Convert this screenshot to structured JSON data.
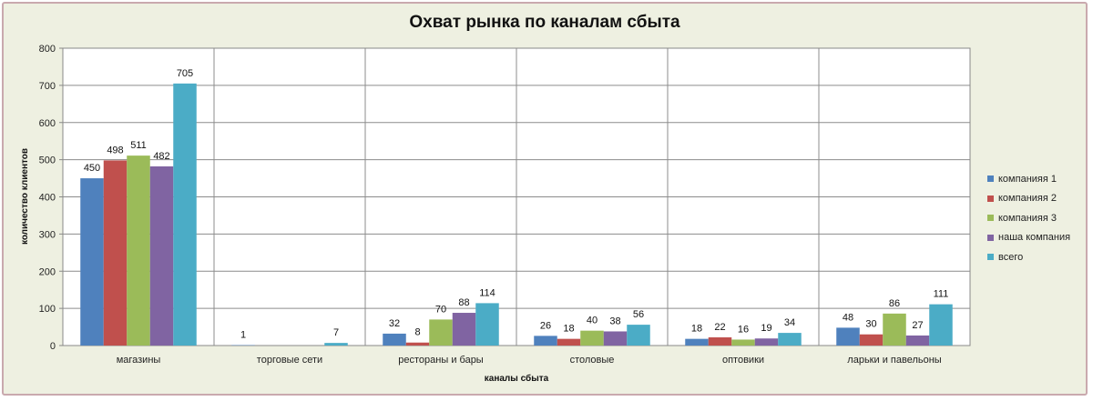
{
  "chart_data": {
    "type": "bar",
    "title": "Охват рынка по каналам сбыта",
    "xlabel": "каналы сбыта",
    "ylabel": "количество клиентов",
    "ylim": [
      0,
      800
    ],
    "yticks": [
      0,
      100,
      200,
      300,
      400,
      500,
      600,
      700,
      800
    ],
    "categories": [
      "магазины",
      "торговые сети",
      "рестораны и бары",
      "столовые",
      "оптовики",
      "ларьки и павельоны"
    ],
    "series": [
      {
        "name": "компанияя 1",
        "color": "#4f81bd",
        "values": [
          450,
          1,
          32,
          26,
          18,
          48
        ]
      },
      {
        "name": "компанияя 2",
        "color": "#c0504d",
        "values": [
          498,
          0,
          8,
          18,
          22,
          30
        ]
      },
      {
        "name": "компанияя 3",
        "color": "#9bbb59",
        "values": [
          511,
          0,
          70,
          40,
          16,
          86
        ]
      },
      {
        "name": "наша компания",
        "color": "#8064a2",
        "values": [
          482,
          0,
          88,
          38,
          19,
          27
        ]
      },
      {
        "name": "всего",
        "color": "#4bacc6",
        "values": [
          705,
          7,
          114,
          56,
          34,
          111
        ]
      }
    ],
    "grid": true,
    "legend": "right"
  }
}
